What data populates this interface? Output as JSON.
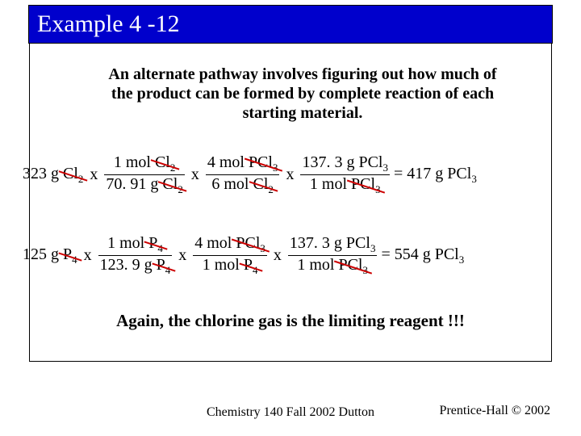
{
  "colors": {
    "title_bg": "#0000cc",
    "title_text": "#ffffff",
    "body_text": "#000000",
    "strike": "#cc0000",
    "background": "#ffffff",
    "border": "#000000"
  },
  "title": "Example 4 -12",
  "intro": "An alternate pathway involves figuring out how much of the product can be formed by complete reaction of each starting material.",
  "eq1": {
    "given_value": "323 g",
    "given_species": "Cl",
    "given_sub": "2",
    "f1_num_value": "1 mol",
    "f1_num_species": "Cl",
    "f1_num_sub": "2",
    "f1_den_value": "70. 91 g",
    "f1_den_species": "Cl",
    "f1_den_sub": "2",
    "f2_num_value": "4 mol",
    "f2_num_species": "PCl",
    "f2_num_sub": "3",
    "f2_den_value": "6 mol",
    "f2_den_species": "Cl",
    "f2_den_sub": "2",
    "f3_num_value": "137. 3 g",
    "f3_num_species": "PCl",
    "f3_num_sub": "3",
    "f3_den_value": "1 mol",
    "f3_den_species": "PCl",
    "f3_den_sub": "3",
    "result_value": "= 417 g",
    "result_species": "PCl",
    "result_sub": "3"
  },
  "eq2": {
    "given_value": "125 g",
    "given_species": "P",
    "given_sub": "4",
    "f1_num_value": "1 mol",
    "f1_num_species": "P",
    "f1_num_sub": "4",
    "f1_den_value": "123. 9 g",
    "f1_den_species": "P",
    "f1_den_sub": "4",
    "f2_num_value": "4 mol",
    "f2_num_species": "PCl",
    "f2_num_sub": "3",
    "f2_den_value": "1 mol",
    "f2_den_species": "P",
    "f2_den_sub": "4",
    "f3_num_value": "137. 3 g",
    "f3_num_species": "PCl",
    "f3_num_sub": "3",
    "f3_den_value": "1 mol",
    "f3_den_species": "PCl",
    "f3_den_sub": "3",
    "result_value": "= 554 g",
    "result_species": "PCl",
    "result_sub": "3"
  },
  "conclusion": "Again, the chlorine gas is the limiting reagent !!!",
  "footer_center": "Chemistry 140 Fall 2002 Dutton",
  "footer_right": "Prentice-Hall © 2002"
}
